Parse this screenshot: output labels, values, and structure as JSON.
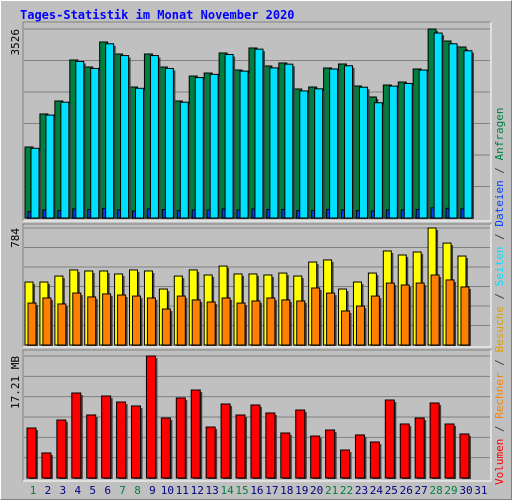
{
  "title": "Tages-Statistik im Monat November 2020",
  "categories": [
    "1",
    "2",
    "3",
    "4",
    "5",
    "6",
    "7",
    "8",
    "9",
    "10",
    "11",
    "12",
    "13",
    "14",
    "15",
    "16",
    "17",
    "18",
    "19",
    "20",
    "21",
    "22",
    "23",
    "24",
    "25",
    "26",
    "27",
    "28",
    "29",
    "30",
    "31"
  ],
  "category_color": "#000080",
  "highlight": [
    "1",
    "7",
    "8",
    "14",
    "15",
    "21",
    "22",
    "28",
    "29"
  ],
  "highlight_color": "#008040",
  "legend_separator": " / ",
  "chart_data": [
    {
      "type": "bar",
      "ylim": [
        0,
        3526
      ],
      "yticks": [
        3526
      ],
      "grid": true,
      "series": [
        {
          "name": "Anfragen",
          "color": "#008040",
          "values": [
            1325,
            1941,
            2183,
            2948,
            2817,
            3284,
            3060,
            2444,
            3060,
            2817,
            2183,
            2649,
            2705,
            3079,
            2761,
            3172,
            2836,
            2892,
            2407,
            2444,
            2799,
            2873,
            2463,
            2258,
            2481,
            2537,
            2780,
            3526,
            3302,
            3190,
            null
          ]
        },
        {
          "name": "Dateien",
          "color": "#0040ff",
          "values": [
            120,
            150,
            140,
            170,
            160,
            180,
            150,
            130,
            170,
            160,
            140,
            150,
            150,
            170,
            150,
            170,
            160,
            160,
            140,
            140,
            160,
            150,
            140,
            130,
            150,
            150,
            160,
            190,
            180,
            170,
            null
          ]
        },
        {
          "name": "Seiten",
          "color": "#00e0ff",
          "values": [
            1300,
            1920,
            2160,
            2920,
            2790,
            3250,
            3030,
            2420,
            3030,
            2790,
            2160,
            2620,
            2680,
            3050,
            2740,
            3150,
            2800,
            2870,
            2370,
            2410,
            2780,
            2840,
            2440,
            2150,
            2460,
            2510,
            2760,
            3451,
            3250,
            3120,
            null
          ]
        }
      ]
    },
    {
      "type": "bar",
      "ylim": [
        0,
        784
      ],
      "yticks": [
        784
      ],
      "grid": true,
      "series": [
        {
          "name": "Besuche",
          "color": "#ffff00",
          "values": [
            422,
            422,
            462,
            503,
            496,
            496,
            476,
            503,
            496,
            375,
            462,
            503,
            469,
            529,
            476,
            476,
            469,
            482,
            462,
            556,
            570,
            375,
            422,
            482,
            630,
            603,
            623,
            784,
            683,
            596,
            null
          ]
        },
        {
          "name": "Rechner",
          "color": "#ff8000",
          "values": [
            281,
            315,
            275,
            348,
            322,
            342,
            335,
            328,
            315,
            241,
            328,
            302,
            288,
            315,
            281,
            295,
            315,
            302,
            295,
            382,
            348,
            228,
            261,
            328,
            415,
            402,
            415,
            469,
            436,
            389,
            null
          ]
        }
      ]
    },
    {
      "type": "bar",
      "ylim": [
        0,
        17.21
      ],
      "yticks": [
        {
          "value": 17.21,
          "label": "17.21 MB"
        }
      ],
      "grid": true,
      "series": [
        {
          "name": "Volumen",
          "color": "#ff0000",
          "values": [
            7.05,
            3.53,
            8.18,
            11.99,
            8.89,
            11.57,
            10.72,
            10.16,
            17.21,
            8.46,
            11.29,
            12.41,
            7.19,
            10.44,
            8.89,
            10.3,
            9.17,
            6.35,
            9.59,
            5.92,
            6.77,
            3.95,
            6.07,
            5.08,
            11.0,
            7.62,
            8.46,
            10.58,
            7.62,
            6.21,
            null
          ]
        }
      ]
    }
  ]
}
